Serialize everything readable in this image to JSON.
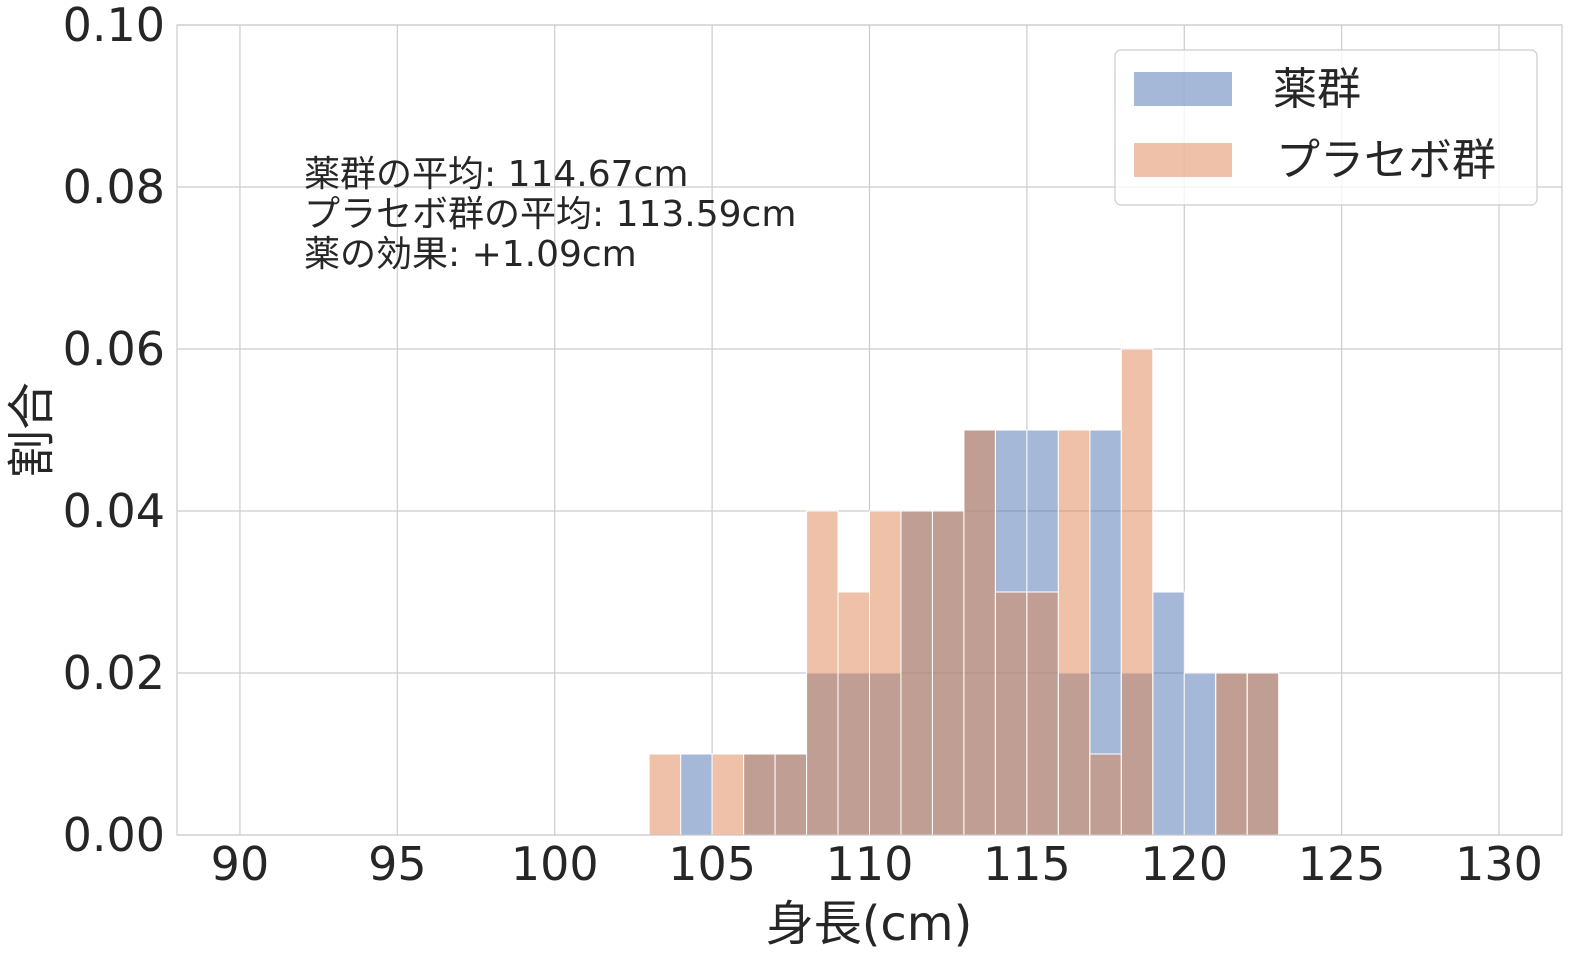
{
  "chart_data": {
    "type": "bar",
    "subtype": "overlaid-histogram",
    "xlabel": "身長(cm)",
    "ylabel": "割合",
    "xlim": [
      88,
      132
    ],
    "ylim": [
      0,
      0.1
    ],
    "xticks": [
      "90",
      "95",
      "100",
      "105",
      "110",
      "115",
      "120",
      "125",
      "130"
    ],
    "yticks": [
      "0.00",
      "0.02",
      "0.04",
      "0.06",
      "0.08",
      "0.10"
    ],
    "grid": true,
    "legend_position": "top-right",
    "bins": [
      [
        103,
        104
      ],
      [
        104,
        105
      ],
      [
        105,
        106
      ],
      [
        106,
        107
      ],
      [
        107,
        108
      ],
      [
        108,
        109
      ],
      [
        109,
        110
      ],
      [
        110,
        111
      ],
      [
        111,
        112
      ],
      [
        112,
        113
      ],
      [
        113,
        114
      ],
      [
        114,
        115
      ],
      [
        115,
        116
      ],
      [
        116,
        117
      ],
      [
        117,
        118
      ],
      [
        118,
        119
      ],
      [
        119,
        120
      ],
      [
        120,
        121
      ],
      [
        121,
        122
      ],
      [
        122,
        123
      ]
    ],
    "series": [
      {
        "name": "薬群",
        "color": "#4c72b0",
        "values": [
          0,
          0.01,
          0,
          0.01,
          0.01,
          0.02,
          0.02,
          0.02,
          0.04,
          0.04,
          0.05,
          0.05,
          0.05,
          0.02,
          0.05,
          0.02,
          0.03,
          0.02,
          0.02,
          0.02
        ]
      },
      {
        "name": "プラセボ群",
        "color": "#dd8452",
        "values": [
          0.01,
          0,
          0.01,
          0.01,
          0.01,
          0.04,
          0.03,
          0.04,
          0.04,
          0.04,
          0.05,
          0.03,
          0.03,
          0.05,
          0.01,
          0.06,
          0,
          0,
          0.02,
          0.02
        ]
      }
    ],
    "annotations": [
      "薬群の平均: 114.67cm",
      "プラセボ群の平均: 113.59cm",
      "薬の効果: +1.09cm"
    ]
  }
}
